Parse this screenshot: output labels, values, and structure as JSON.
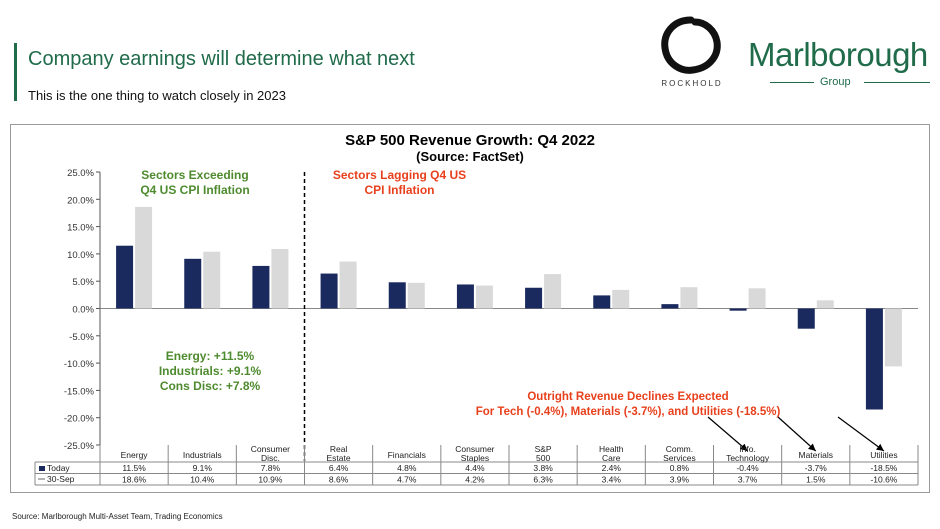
{
  "header": {
    "title": "Company earnings will determine what next",
    "subtitle": "This is the one thing to watch closely in 2023",
    "rockhold_label": "ROCKHOLD",
    "brand_name": "Marlborough",
    "brand_sub": "Group"
  },
  "footer": {
    "source": "Source: Marlborough Multi-Asset Team, Trading Economics"
  },
  "colors": {
    "accent": "#1f6b4a",
    "today": "#1a2a5e",
    "sep30": "#d9d9d9",
    "green_text": "#4e8a2e",
    "red_text": "#e8401c"
  },
  "chart_data": {
    "type": "bar",
    "title": "S&P 500 Revenue Growth: Q4 2022",
    "subtitle": "(Source: FactSet)",
    "categories": [
      "Energy",
      "Industrials",
      "Consumer Disc.",
      "Real Estate",
      "Financials",
      "Consumer Staples",
      "S&P 500",
      "Health Care",
      "Comm. Services",
      "Info. Technology",
      "Materials",
      "Utilities"
    ],
    "series": [
      {
        "name": "Today",
        "values": [
          11.5,
          9.1,
          7.8,
          6.4,
          4.8,
          4.4,
          3.8,
          2.4,
          0.8,
          -0.4,
          -3.7,
          -18.5
        ],
        "labels": [
          "11.5%",
          "9.1%",
          "7.8%",
          "6.4%",
          "4.8%",
          "4.4%",
          "3.8%",
          "2.4%",
          "0.8%",
          "-0.4%",
          "-3.7%",
          "-18.5%"
        ]
      },
      {
        "name": "30-Sep",
        "values": [
          18.6,
          10.4,
          10.9,
          8.6,
          4.7,
          4.2,
          6.3,
          3.4,
          3.9,
          3.7,
          1.5,
          -10.6
        ],
        "labels": [
          "18.6%",
          "10.4%",
          "10.9%",
          "8.6%",
          "4.7%",
          "4.2%",
          "6.3%",
          "3.4%",
          "3.9%",
          "3.7%",
          "1.5%",
          "-10.6%"
        ]
      }
    ],
    "ylim": [
      -25,
      25
    ],
    "yticks": [
      25,
      20,
      15,
      10,
      5,
      0,
      -5,
      -10,
      -15,
      -20,
      -25
    ],
    "ytick_labels": [
      "25.0%",
      "20.0%",
      "15.0%",
      "10.0%",
      "5.0%",
      "0.0%",
      "-5.0%",
      "-10.0%",
      "-15.0%",
      "-20.0%",
      "-25.0%"
    ],
    "annotations": {
      "exceeding": [
        "Sectors Exceeding",
        "Q4 US CPI Inflation"
      ],
      "lagging": [
        "Sectors Lagging Q4 US",
        "CPI Inflation"
      ],
      "callout": [
        "Energy: +11.5%",
        "Industrials: +9.1%",
        "Cons Disc: +7.8%"
      ],
      "declines": [
        "Outright Revenue Declines Expected",
        "For Tech (-0.4%), Materials (-3.7%), and Utilities (-18.5%)"
      ]
    },
    "divider_after_category": "Consumer Disc.",
    "grid": false,
    "legend": "data-table"
  }
}
